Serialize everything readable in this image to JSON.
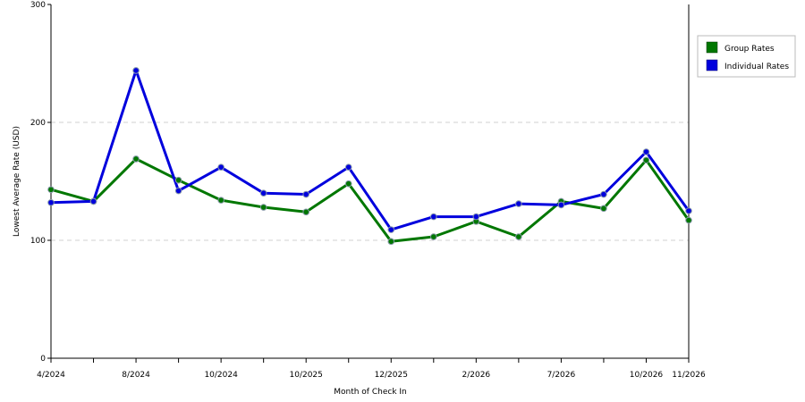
{
  "chart_data": {
    "type": "line",
    "title": "",
    "xlabel": "Month of Check In",
    "ylabel": "Lowest Average Rate (USD)",
    "ylim": [
      0,
      300
    ],
    "yticks": [
      0,
      100,
      200,
      300
    ],
    "grid": true,
    "legend_position": "right",
    "x_tick_labels": [
      "4/2024",
      "",
      "8/2024",
      "",
      "10/2024",
      "",
      "10/2025",
      "",
      "12/2025",
      "",
      "2/2026",
      "",
      "7/2026",
      "",
      "10/2026",
      "11/2026"
    ],
    "series": [
      {
        "name": "Group Rates",
        "color": "#007700",
        "values": [
          143,
          133,
          169,
          151,
          134,
          128,
          124,
          148,
          99,
          103,
          116,
          103,
          133,
          127,
          168,
          117
        ]
      },
      {
        "name": "Individual Rates",
        "color": "#0000dd",
        "values": [
          132,
          133,
          244,
          142,
          162,
          140,
          139,
          162,
          109,
          120,
          120,
          131,
          130,
          139,
          175,
          125
        ]
      }
    ]
  }
}
